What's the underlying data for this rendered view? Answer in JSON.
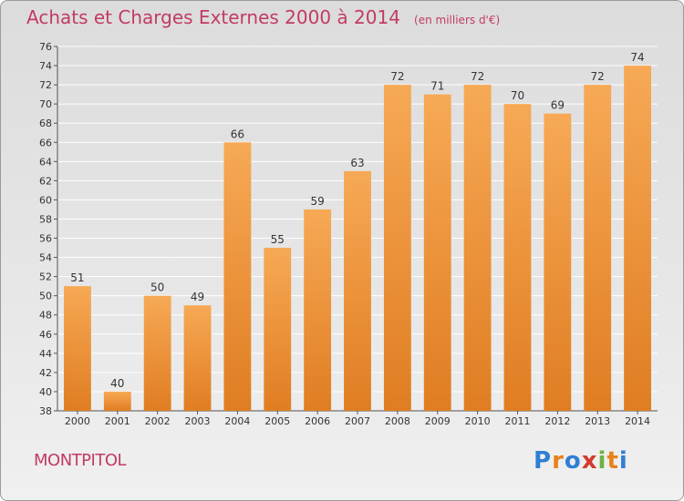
{
  "header": {
    "title": "Achats et Charges Externes 2000 à 2014",
    "subtitle": "(en milliers d'€)"
  },
  "commune": "MONTPITOL",
  "logo": {
    "text": "Proxiti",
    "letters": [
      {
        "ch": "P",
        "color": "#2f7fd4"
      },
      {
        "ch": "r",
        "color": "#e8821d"
      },
      {
        "ch": "o",
        "color": "#2f7fd4"
      },
      {
        "ch": "x",
        "color": "#d43a2f"
      },
      {
        "ch": "i",
        "color": "#6cb33f"
      },
      {
        "ch": "t",
        "color": "#e8821d"
      },
      {
        "ch": "i",
        "color": "#2f7fd4"
      }
    ]
  },
  "colors": {
    "bar_light": "#f7a955",
    "bar_dark": "#e07d22",
    "accent": "#c23b62",
    "grid": "#ffffff"
  },
  "chart_data": {
    "type": "bar",
    "title": "Achats et Charges Externes 2000 à 2014",
    "subtitle": "(en milliers d'€)",
    "categories": [
      "2000",
      "2001",
      "2002",
      "2003",
      "2004",
      "2005",
      "2006",
      "2007",
      "2008",
      "2009",
      "2010",
      "2011",
      "2012",
      "2013",
      "2014"
    ],
    "values": [
      51,
      40,
      50,
      49,
      66,
      55,
      59,
      63,
      72,
      71,
      72,
      70,
      69,
      72,
      74
    ],
    "ylim": [
      38,
      76
    ],
    "ytick_step": 2,
    "grid": true,
    "legend": "none"
  }
}
